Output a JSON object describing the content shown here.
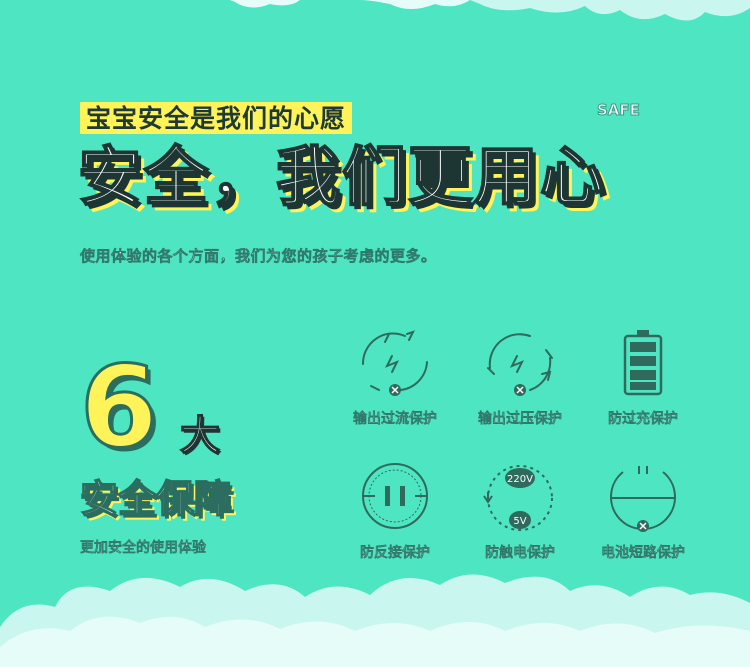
{
  "header": {
    "subtitle": "宝宝安全是我们的心愿",
    "safe_tag": "SAFE",
    "headline": "安全，我们更用心",
    "description": "使用体验的各个方面，我们为您的孩子考虑的更多。"
  },
  "guarantee": {
    "number": "6",
    "unit": "大",
    "title": "安全保障",
    "subtitle": "更加安全的使用体验"
  },
  "features": [
    {
      "icon": "overcurrent-icon",
      "label": "输出过流保护"
    },
    {
      "icon": "overvoltage-icon",
      "label": "输出过压保护"
    },
    {
      "icon": "battery-icon",
      "label": "防过充保护"
    },
    {
      "icon": "reverse-connection-icon",
      "label": "防反接保护"
    },
    {
      "icon": "anti-shock-icon",
      "label": "防触电保护",
      "badge_top": "220V",
      "badge_bottom": "5V"
    },
    {
      "icon": "short-circuit-icon",
      "label": "电池短路保护"
    }
  ],
  "colors": {
    "background": "#4ee6c2",
    "accent_yellow": "#fff35a",
    "icon_stroke": "#2f6a5c",
    "cloud": "#c9f7ef"
  }
}
